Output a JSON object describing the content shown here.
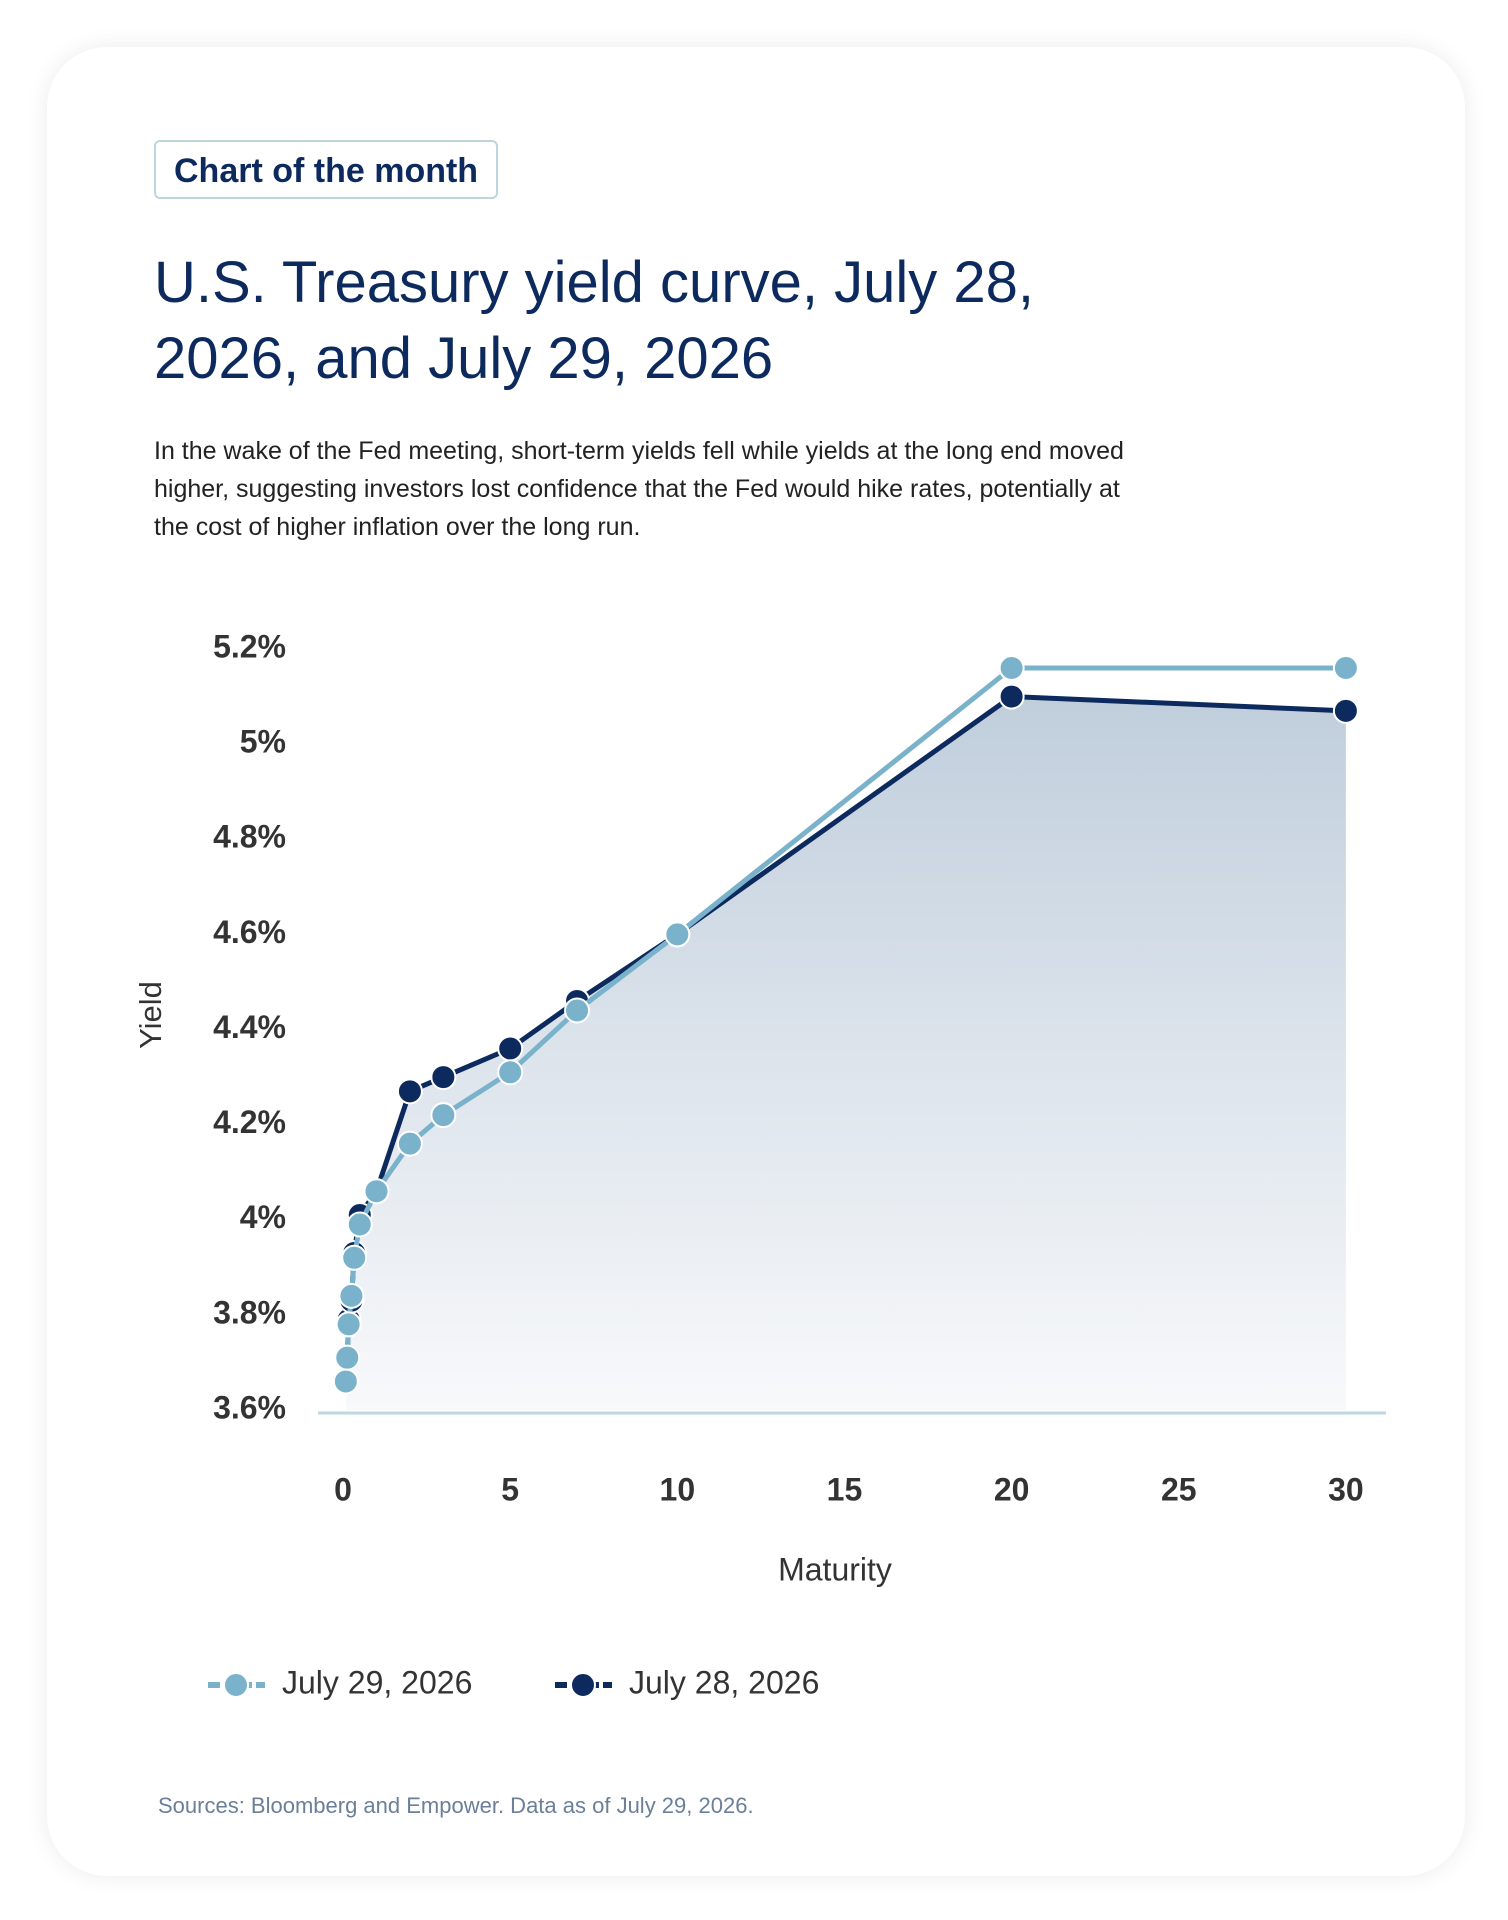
{
  "chart_data": {
    "type": "line",
    "badge": "Chart of the month",
    "title": "U.S. Treasury yield curve, July 28, 2026, and July 29, 2026",
    "subtitle": "In the wake of the Fed meeting, short-term yields fell while yields at the long end moved higher, suggesting investors lost confidence that the Fed would hike rates, potentially at the cost of higher inflation over the long run.",
    "source": "Sources: Bloomberg and Empower. Data as of July 29, 2026.",
    "x_label": "Maturity",
    "y_label": "Yield",
    "x": [
      0.083,
      0.125,
      0.167,
      0.25,
      0.333,
      0.5,
      1,
      2,
      3,
      5,
      7,
      10,
      20,
      30
    ],
    "series": [
      {
        "name": "July 29, 2026",
        "color": "#7ab2cb",
        "values": [
          3.66,
          3.71,
          3.78,
          3.84,
          3.92,
          3.99,
          4.06,
          4.16,
          4.22,
          4.31,
          4.44,
          4.6,
          5.16,
          5.16
        ]
      },
      {
        "name": "July 28, 2026",
        "color": "#0d2a5e",
        "values": [
          3.66,
          3.71,
          3.79,
          3.83,
          3.93,
          4.01,
          4.06,
          4.27,
          4.3,
          4.36,
          4.46,
          4.6,
          5.1,
          5.07
        ]
      }
    ],
    "xlim": [
      -0.75,
      31.2
    ],
    "xticks": [
      0,
      5,
      10,
      15,
      20,
      25,
      30
    ],
    "ylim": [
      3.6,
      5.2
    ],
    "yticks": [
      {
        "value": 3.6,
        "label": "3.6%"
      },
      {
        "value": 3.8,
        "label": "3.8%"
      },
      {
        "value": 4.0,
        "label": "4%"
      },
      {
        "value": 4.2,
        "label": "4.2%"
      },
      {
        "value": 4.4,
        "label": "4.4%"
      },
      {
        "value": 4.6,
        "label": "4.6%"
      },
      {
        "value": 4.8,
        "label": "4.8%"
      },
      {
        "value": 5.0,
        "label": "5%"
      },
      {
        "value": 5.2,
        "label": "5.2%"
      }
    ],
    "grid": false
  }
}
